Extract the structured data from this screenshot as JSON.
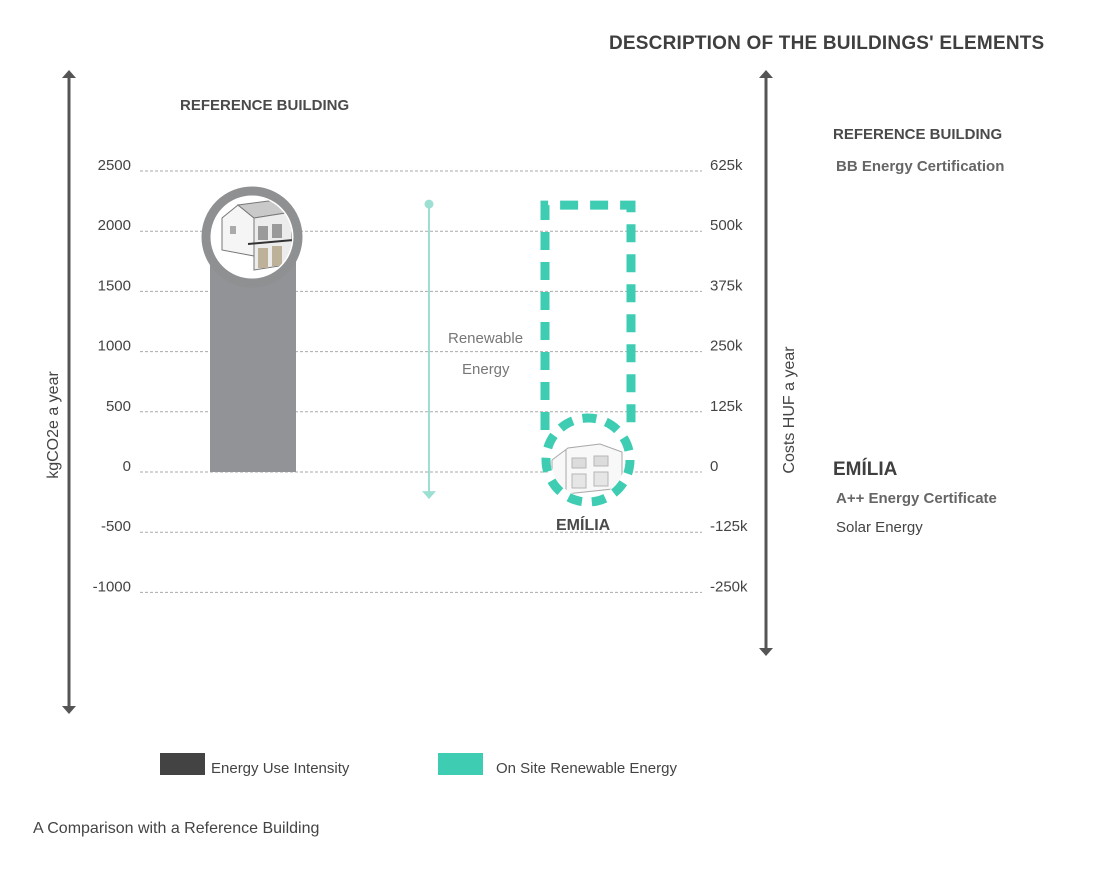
{
  "header": {
    "description_title": "DESCRIPTION OF THE BUILDINGS' ELEMENTS"
  },
  "description": {
    "reference_title": "REFERENCE BUILDING",
    "reference_detail": "BB Energy Certification",
    "emilia_title": "EMÍLIA",
    "emilia_detail_1": "A++ Energy Certificate",
    "emilia_detail_2": "Solar Energy"
  },
  "labels": {
    "reference_building": "REFERENCE BUILDING",
    "emilia": "EMÍLIA",
    "renewable_line1": "Renewable",
    "renewable_line2": "Energy"
  },
  "legend": {
    "item1": "Energy Use Intensity",
    "item2": "On Site Renewable Energy"
  },
  "caption": "A Comparison with a Reference Building",
  "colors": {
    "energy_use": "#434343",
    "reference_bar": "#929396",
    "renewable": "#3ecdb3",
    "renewable_arrow": "#9edfd3",
    "axis": "#555555",
    "grid": "#aaaaaa"
  },
  "icons": {
    "reference_building_image": "house-illustration-icon",
    "emilia_building_image": "house-illustration-icon"
  },
  "chart_data": {
    "type": "bar",
    "categories": [
      "REFERENCE BUILDING",
      "EMÍLIA"
    ],
    "series": [
      {
        "name": "Energy Use Intensity",
        "values": [
          1850,
          0
        ]
      },
      {
        "name": "On Site Renewable Energy",
        "values": [
          0,
          2200
        ]
      }
    ],
    "emilia_net_value": -70,
    "renewable_energy_arrow": {
      "from": 2200,
      "to": -250
    },
    "ylabel": "kgCO2e a year",
    "y2label": "Costs HUF a year",
    "ylim": [
      -1000,
      2500
    ],
    "yticks": [
      2500,
      2000,
      1500,
      1000,
      500,
      0,
      -500,
      -1000
    ],
    "ytick_labels": [
      "2500",
      "2000",
      "1500",
      "1000",
      "500",
      "0",
      "-500",
      "-1000"
    ],
    "y2tick_labels": [
      "625k",
      "500k",
      "375k",
      "250k",
      "125k",
      "0",
      "-125k",
      "-250k"
    ],
    "grid": true
  }
}
